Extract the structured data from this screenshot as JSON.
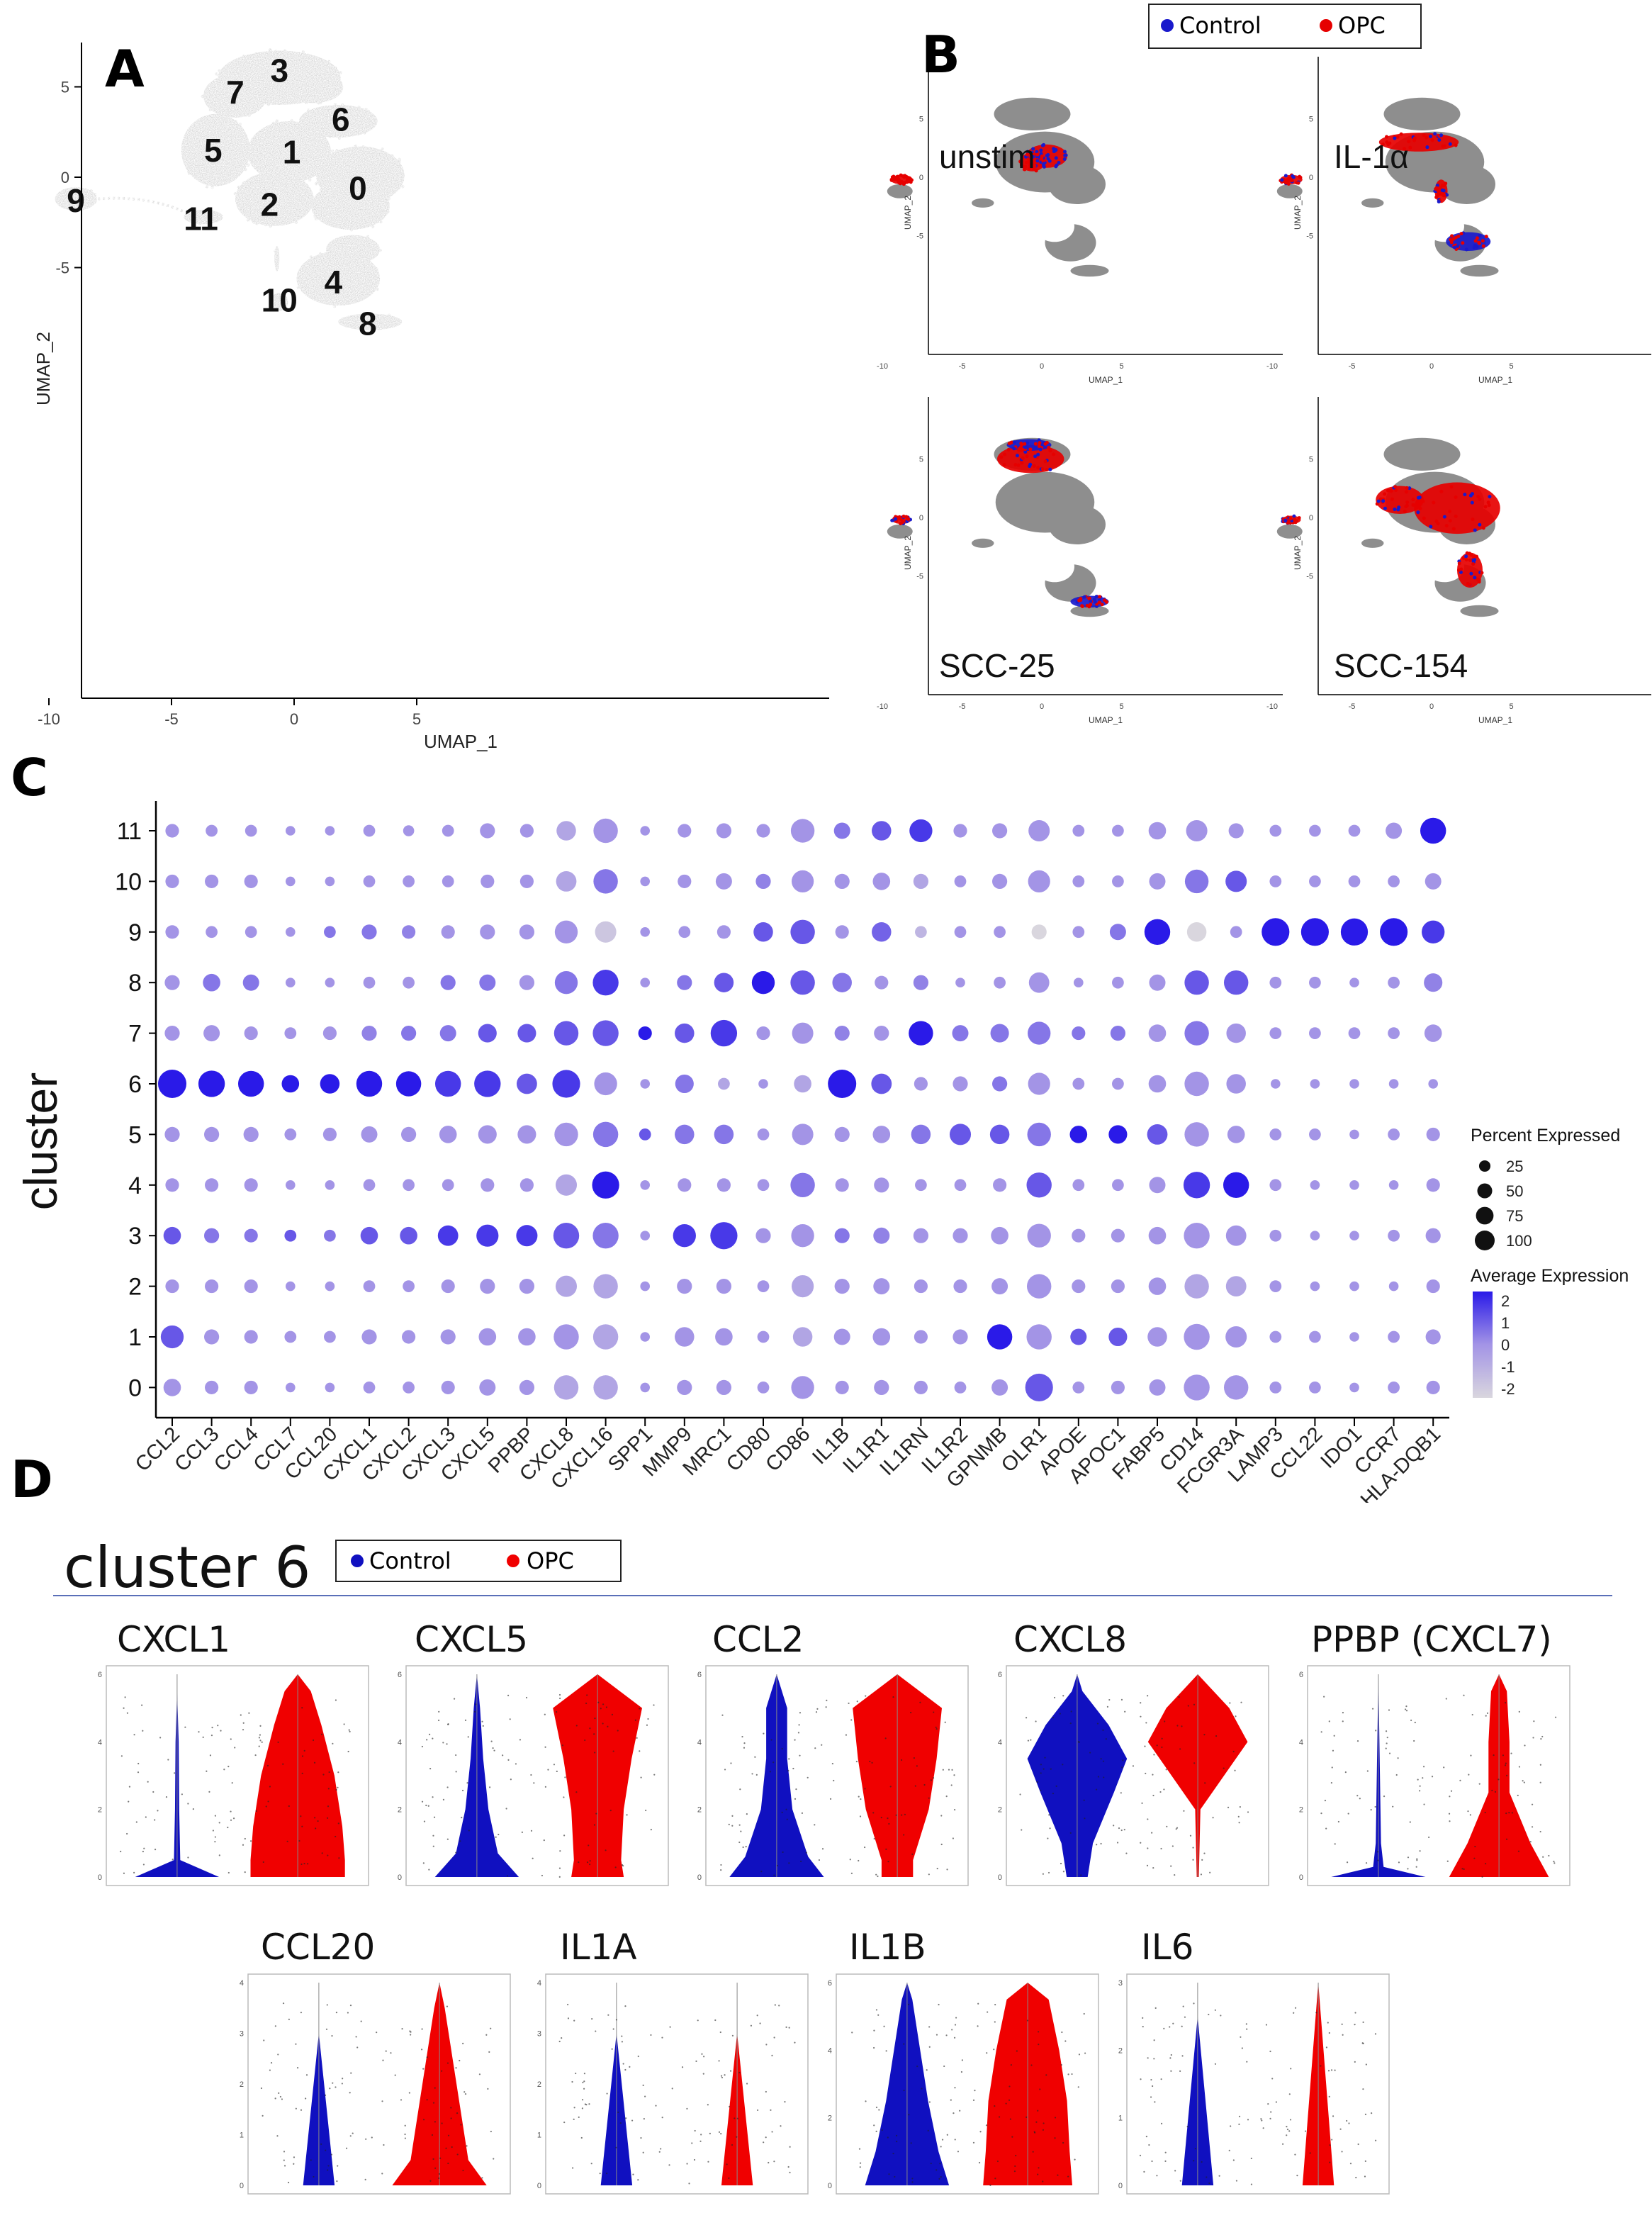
{
  "panels": {
    "A": "A",
    "B": "B",
    "C": "C",
    "D": "D"
  },
  "umap": {
    "xlabel": "UMAP_1",
    "ylabel": "UMAP_2",
    "xticks": [
      "-10",
      "-5",
      "0",
      "5"
    ],
    "yticks": [
      "5",
      "0",
      "-5"
    ],
    "clusters": [
      {
        "id": "0",
        "color": "#F8766D",
        "label_x": 2.6,
        "label_y": -0.6
      },
      {
        "id": "1",
        "color": "#DB8E00",
        "label_x": -0.1,
        "label_y": 1.4
      },
      {
        "id": "2",
        "color": "#AEA200",
        "label_x": -1.0,
        "label_y": -1.5
      },
      {
        "id": "3",
        "color": "#64B200",
        "label_x": -0.6,
        "label_y": 5.9
      },
      {
        "id": "4",
        "color": "#00BD5C",
        "label_x": 1.6,
        "label_y": -5.8
      },
      {
        "id": "5",
        "color": "#00C1A7",
        "label_x": -3.3,
        "label_y": 1.5
      },
      {
        "id": "6",
        "color": "#00BADE",
        "label_x": 1.9,
        "label_y": 3.2
      },
      {
        "id": "7",
        "color": "#00A6FF",
        "label_x": -2.4,
        "label_y": 4.7
      },
      {
        "id": "8",
        "color": "#6FA4F0",
        "label_x": 3.0,
        "label_y": -8.1
      },
      {
        "id": "9",
        "color": "#C77CFF",
        "label_x": -8.9,
        "label_y": -1.3
      },
      {
        "id": "10",
        "color": "#F058D8",
        "label_x": -0.6,
        "label_y": -6.8
      },
      {
        "id": "11",
        "color": "#FF61C3",
        "label_x": -3.8,
        "label_y": -2.3
      }
    ]
  },
  "panelB": {
    "legend": [
      {
        "label": "Control",
        "color": "#1A1ACC"
      },
      {
        "label": "OPC",
        "color": "#E60000"
      }
    ],
    "facets": [
      "unstim",
      "IL-1α",
      "SCC-25",
      "SCC-154"
    ],
    "xlabel": "UMAP_1",
    "ylabel": "UMAP_2",
    "xticks": [
      "-10",
      "-5",
      "0",
      "5"
    ],
    "yticks": [
      "5",
      "0",
      "-5"
    ]
  },
  "chart_data": {
    "type": "dotplot",
    "ylabel": "cluster",
    "clusters": [
      "11",
      "10",
      "9",
      "8",
      "7",
      "6",
      "5",
      "4",
      "3",
      "2",
      "1",
      "0"
    ],
    "genes": [
      "CCL2",
      "CCL3",
      "CCL4",
      "CCL7",
      "CCL20",
      "CXCL1",
      "CXCL2",
      "CXCL3",
      "CXCL5",
      "PPBP",
      "CXCL8",
      "CXCL16",
      "SPP1",
      "MMP9",
      "MRC1",
      "CD80",
      "CD86",
      "IL1B",
      "IL1R1",
      "IL1RN",
      "IL1R2",
      "GPNMB",
      "OLR1",
      "APOE",
      "APOC1",
      "FABP5",
      "CD14",
      "FCGR3A",
      "LAMP3",
      "CCL22",
      "IDO1",
      "CCR7",
      "HLA-DQB1"
    ],
    "percent_expressed_rows": [
      [
        15,
        10,
        10,
        5,
        5,
        10,
        8,
        10,
        20,
        15,
        40,
        70,
        5,
        15,
        20,
        15,
        65,
        25,
        40,
        60,
        15,
        20,
        50,
        10,
        10,
        30,
        50,
        20,
        10,
        10,
        10,
        25,
        80
      ],
      [
        15,
        15,
        15,
        5,
        5,
        10,
        10,
        10,
        15,
        15,
        45,
        70,
        5,
        15,
        25,
        20,
        55,
        20,
        30,
        20,
        10,
        20,
        55,
        10,
        10,
        25,
        65,
        50,
        10,
        10,
        10,
        10,
        25
      ],
      [
        15,
        10,
        10,
        5,
        10,
        20,
        15,
        15,
        20,
        20,
        60,
        50,
        5,
        10,
        15,
        40,
        70,
        15,
        40,
        10,
        10,
        10,
        20,
        10,
        25,
        80,
        40,
        10,
        95,
        95,
        90,
        95,
        60
      ],
      [
        20,
        30,
        25,
        5,
        5,
        10,
        10,
        20,
        25,
        20,
        60,
        80,
        5,
        20,
        40,
        60,
        70,
        40,
        15,
        20,
        5,
        10,
        45,
        5,
        10,
        25,
        70,
        70,
        10,
        10,
        5,
        10,
        35
      ],
      [
        20,
        25,
        15,
        10,
        15,
        20,
        20,
        25,
        35,
        35,
        70,
        80,
        15,
        40,
        85,
        15,
        50,
        20,
        20,
        70,
        25,
        35,
        60,
        15,
        20,
        30,
        70,
        40,
        10,
        10,
        10,
        10,
        30
      ],
      [
        100,
        85,
        80,
        30,
        40,
        80,
        75,
        80,
        85,
        45,
        95,
        60,
        5,
        35,
        10,
        5,
        30,
        100,
        45,
        15,
        20,
        20,
        55,
        10,
        10,
        30,
        70,
        40,
        5,
        5,
        5,
        5,
        5
      ],
      [
        20,
        20,
        20,
        10,
        15,
        25,
        20,
        30,
        35,
        35,
        65,
        75,
        10,
        40,
        40,
        10,
        50,
        20,
        30,
        40,
        50,
        40,
        65,
        30,
        35,
        45,
        70,
        30,
        10,
        10,
        5,
        10,
        15
      ],
      [
        15,
        15,
        15,
        5,
        5,
        10,
        10,
        10,
        15,
        15,
        50,
        90,
        5,
        15,
        15,
        10,
        70,
        15,
        20,
        10,
        10,
        15,
        75,
        10,
        10,
        25,
        85,
        80,
        10,
        5,
        5,
        5,
        15
      ],
      [
        30,
        20,
        15,
        10,
        10,
        30,
        30,
        45,
        55,
        50,
        80,
        80,
        5,
        60,
        90,
        20,
        60,
        20,
        25,
        20,
        20,
        30,
        65,
        15,
        15,
        30,
        80,
        45,
        10,
        5,
        5,
        10,
        20
      ],
      [
        15,
        15,
        15,
        5,
        5,
        10,
        10,
        15,
        20,
        20,
        50,
        70,
        5,
        20,
        20,
        10,
        55,
        20,
        25,
        15,
        15,
        25,
        70,
        15,
        15,
        30,
        70,
        45,
        10,
        5,
        5,
        5,
        15
      ],
      [
        60,
        20,
        15,
        10,
        10,
        20,
        15,
        20,
        30,
        30,
        75,
        75,
        5,
        40,
        30,
        10,
        40,
        25,
        30,
        15,
        20,
        75,
        75,
        25,
        35,
        40,
        80,
        50,
        10,
        10,
        5,
        10,
        20
      ],
      [
        30,
        15,
        15,
        5,
        5,
        10,
        10,
        15,
        25,
        20,
        70,
        70,
        5,
        20,
        20,
        10,
        60,
        15,
        20,
        15,
        10,
        25,
        95,
        10,
        15,
        25,
        80,
        70,
        10,
        10,
        5,
        10,
        15
      ]
    ],
    "average_expression_rows": [
      [
        0,
        0,
        0,
        0,
        0,
        0,
        0,
        0,
        0,
        0,
        -0.5,
        0,
        0,
        0,
        0,
        0,
        0,
        0.5,
        1.0,
        1.5,
        0,
        0,
        0,
        0,
        0,
        0,
        0,
        0,
        0,
        0,
        0,
        0,
        2.0
      ],
      [
        0,
        0,
        0,
        0,
        0,
        0,
        0,
        0,
        0,
        0,
        -0.5,
        0.5,
        0,
        0,
        0,
        0.3,
        0,
        0,
        0,
        -0.5,
        0,
        0,
        0,
        0,
        0,
        0,
        0.5,
        1.0,
        0,
        0,
        0,
        0,
        0
      ],
      [
        0,
        0,
        0,
        0,
        0.5,
        0.5,
        0.3,
        0,
        0,
        0,
        0,
        -1.5,
        0,
        0,
        0,
        1.0,
        1.0,
        0,
        0.8,
        -1,
        0,
        0,
        -2,
        0,
        0.5,
        2.0,
        -2,
        0,
        2,
        2,
        2,
        2,
        1.5
      ],
      [
        0,
        0.5,
        0.5,
        0,
        0,
        0,
        0,
        0.5,
        0.5,
        0,
        0.5,
        1.5,
        0,
        0.5,
        1.0,
        2.0,
        1.0,
        0.5,
        0,
        0.3,
        0,
        0,
        0,
        0,
        0,
        0,
        1.0,
        1.0,
        0,
        0,
        0,
        0,
        0.3
      ],
      [
        0,
        0,
        0,
        0,
        0,
        0.3,
        0.5,
        0.5,
        1.0,
        1.0,
        1.0,
        1.0,
        2.0,
        1.0,
        1.5,
        0,
        0,
        0.3,
        0,
        2.0,
        0.5,
        0.5,
        0.5,
        0.5,
        0.5,
        0,
        0.5,
        0,
        0,
        0,
        0,
        0,
        0
      ],
      [
        2.0,
        2.0,
        2.0,
        2.0,
        2.0,
        2.0,
        2.0,
        1.5,
        1.5,
        1.0,
        1.5,
        0,
        0,
        0.5,
        -0.5,
        0,
        -0.5,
        2.0,
        1.0,
        0,
        0,
        0.5,
        0,
        0,
        0,
        0,
        0,
        0,
        0,
        0,
        0,
        0,
        0
      ],
      [
        0,
        0,
        0,
        0,
        0,
        0,
        0,
        0,
        0,
        0,
        0,
        0.5,
        1.0,
        0.5,
        0.5,
        0,
        0,
        0,
        0,
        0.5,
        1.0,
        1.0,
        0.5,
        2.0,
        2.0,
        1.0,
        0,
        0,
        0,
        0,
        0,
        0,
        0
      ],
      [
        0,
        0,
        0,
        0,
        0,
        0,
        0,
        0,
        0,
        0,
        -0.5,
        2.0,
        0,
        0,
        0,
        0,
        0.5,
        0,
        0,
        0,
        0,
        0,
        1.0,
        0,
        0,
        0,
        1.5,
        2.0,
        0,
        0,
        0,
        0,
        0
      ],
      [
        1.0,
        0.5,
        0.5,
        1.0,
        0.5,
        1.0,
        1.0,
        1.5,
        1.5,
        1.5,
        1.0,
        0.5,
        0,
        1.5,
        1.5,
        0,
        0,
        0.5,
        0.3,
        0,
        0,
        0,
        0,
        0,
        0,
        0,
        0,
        0,
        0,
        0,
        0,
        0,
        0
      ],
      [
        0,
        0,
        0,
        0,
        0,
        0,
        0,
        0,
        0,
        0,
        -0.5,
        -0.5,
        0,
        0,
        0,
        0,
        -0.5,
        0,
        0,
        0,
        0,
        0,
        0,
        0,
        0,
        0,
        -0.5,
        -0.5,
        0,
        0,
        0,
        0,
        0
      ],
      [
        1.0,
        0,
        0,
        0,
        0,
        0,
        0,
        0,
        0,
        0,
        0,
        -0.5,
        0,
        0,
        0,
        0,
        -0.5,
        0,
        0,
        0,
        0,
        2.0,
        0,
        1.0,
        1.0,
        0,
        0,
        0,
        0,
        0,
        0,
        0,
        0
      ],
      [
        0,
        0,
        0,
        0,
        0,
        0,
        0,
        0,
        0,
        0,
        -0.5,
        -0.5,
        0,
        0,
        0,
        0,
        0,
        0,
        0,
        0,
        0,
        0,
        1.0,
        0,
        0,
        0,
        0,
        0,
        0,
        0,
        0,
        0,
        0
      ]
    ],
    "size_legend": {
      "title": "Percent Expressed",
      "values": [
        25,
        50,
        75,
        100
      ]
    },
    "color_legend": {
      "title": "Average Expression",
      "ticks": [
        "2",
        "1",
        "0",
        "-1",
        "-2"
      ],
      "range": [
        -2,
        2
      ]
    }
  },
  "panelD": {
    "title": "cluster 6",
    "legend": [
      {
        "label": "Control",
        "color": "#1010C0"
      },
      {
        "label": "OPC",
        "color": "#F00000"
      }
    ],
    "violins": [
      {
        "gene": "CXCL1",
        "ymax": 6,
        "yticks": [
          "0",
          "2",
          "4",
          "6"
        ],
        "control": [
          [
            0,
            0.8
          ],
          [
            0.5,
            0.06
          ],
          [
            2,
            0.04
          ],
          [
            4,
            0.03
          ],
          [
            5.5,
            0
          ]
        ],
        "opc": [
          [
            0,
            0.9
          ],
          [
            0.5,
            0.9
          ],
          [
            1.5,
            0.85
          ],
          [
            3,
            0.7
          ],
          [
            4.5,
            0.45
          ],
          [
            5.5,
            0.25
          ],
          [
            6,
            0
          ]
        ]
      },
      {
        "gene": "CXCL5",
        "ymax": 6,
        "yticks": [
          "0",
          "2",
          "4",
          "6"
        ],
        "control": [
          [
            0,
            0.8
          ],
          [
            0.7,
            0.4
          ],
          [
            2,
            0.22
          ],
          [
            3.5,
            0.12
          ],
          [
            5,
            0.06
          ],
          [
            6,
            0
          ]
        ],
        "opc": [
          [
            0,
            0.5
          ],
          [
            0.5,
            0.45
          ],
          [
            2,
            0.5
          ],
          [
            3.5,
            0.65
          ],
          [
            5,
            0.85
          ],
          [
            6,
            0
          ]
        ]
      },
      {
        "gene": "CCL2",
        "ymax": 6,
        "yticks": [
          "0",
          "2",
          "4",
          "6"
        ],
        "control": [
          [
            0,
            0.9
          ],
          [
            0.6,
            0.6
          ],
          [
            2,
            0.3
          ],
          [
            3.5,
            0.2
          ],
          [
            5,
            0.2
          ],
          [
            6,
            0
          ]
        ],
        "opc": [
          [
            0,
            0.3
          ],
          [
            0.5,
            0.3
          ],
          [
            2,
            0.6
          ],
          [
            3.5,
            0.75
          ],
          [
            5,
            0.85
          ],
          [
            6,
            0
          ]
        ]
      },
      {
        "gene": "CXCL8",
        "ymax": 6,
        "yticks": [
          "0",
          "2",
          "4",
          "6"
        ],
        "control": [
          [
            0,
            0.2
          ],
          [
            1,
            0.3
          ],
          [
            2.5,
            0.7
          ],
          [
            3.5,
            0.95
          ],
          [
            4.5,
            0.6
          ],
          [
            5.5,
            0.1
          ],
          [
            6,
            0
          ]
        ],
        "opc": [
          [
            0,
            0.02
          ],
          [
            2,
            0.05
          ],
          [
            3,
            0.5
          ],
          [
            4,
            0.95
          ],
          [
            5,
            0.6
          ],
          [
            6,
            0
          ]
        ]
      },
      {
        "gene": "PPBP (CXCL7)",
        "ymax": 6,
        "yticks": [
          "0",
          "2",
          "4",
          "6"
        ],
        "control": [
          [
            0,
            0.9
          ],
          [
            0.3,
            0.1
          ],
          [
            1,
            0.05
          ],
          [
            6,
            0
          ]
        ],
        "opc": [
          [
            0,
            0.95
          ],
          [
            1,
            0.6
          ],
          [
            2.5,
            0.2
          ],
          [
            4,
            0.2
          ],
          [
            5.5,
            0.15
          ],
          [
            6,
            0
          ]
        ]
      },
      {
        "gene": "CCL20",
        "ymax": 4,
        "yticks": [
          "0",
          "1",
          "2",
          "3",
          "4"
        ],
        "control": [
          [
            0,
            0.3
          ],
          [
            3,
            0
          ]
        ],
        "opc": [
          [
            0,
            0.9
          ],
          [
            0.5,
            0.55
          ],
          [
            1.5,
            0.4
          ],
          [
            2.5,
            0.25
          ],
          [
            3.5,
            0.1
          ],
          [
            4,
            0
          ]
        ]
      },
      {
        "gene": "IL1A",
        "ymax": 4,
        "yticks": [
          "0",
          "1",
          "2",
          "3",
          "4"
        ],
        "control": [
          [
            0,
            0.3
          ],
          [
            3,
            0
          ]
        ],
        "opc": [
          [
            0,
            0.3
          ],
          [
            3,
            0
          ]
        ]
      },
      {
        "gene": "IL1B",
        "ymax": 6,
        "yticks": [
          "0",
          "2",
          "4",
          "6"
        ],
        "control": [
          [
            0,
            0.8
          ],
          [
            1,
            0.6
          ],
          [
            2.5,
            0.4
          ],
          [
            4,
            0.25
          ],
          [
            5.5,
            0.1
          ],
          [
            6,
            0
          ]
        ],
        "opc": [
          [
            0,
            0.85
          ],
          [
            1,
            0.8
          ],
          [
            2.5,
            0.75
          ],
          [
            4,
            0.6
          ],
          [
            5.5,
            0.4
          ],
          [
            6,
            0
          ]
        ]
      },
      {
        "gene": "IL6",
        "ymax": 3,
        "yticks": [
          "0",
          "1",
          "2",
          "3"
        ],
        "control": [
          [
            0,
            0.3
          ],
          [
            2.5,
            0
          ]
        ],
        "opc": [
          [
            0,
            0.3
          ],
          [
            3,
            0
          ]
        ]
      }
    ]
  }
}
